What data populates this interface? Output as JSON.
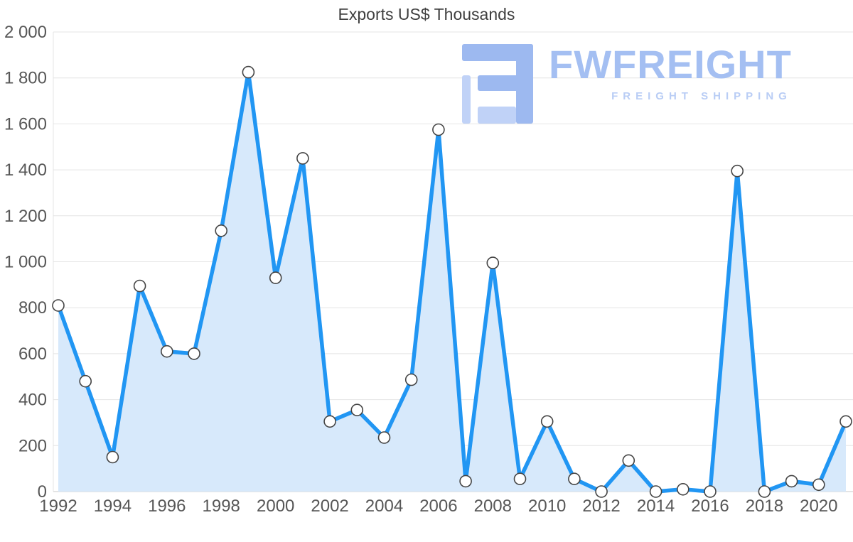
{
  "title": "Exports US$ Thousands",
  "watermark": {
    "brand": "FWFREIGHT",
    "tagline": "FREIGHT SHIPPING",
    "brand_color": "#a4bff2",
    "tagline_color": "#b9cdf5",
    "logo_dark": "#9db9f0",
    "logo_light": "#c0d2f7"
  },
  "chart_data": {
    "type": "area",
    "title": "Exports US$ Thousands",
    "xlabel": "",
    "ylabel": "",
    "x": [
      1992,
      1993,
      1994,
      1995,
      1996,
      1997,
      1998,
      1999,
      2000,
      2001,
      2002,
      2003,
      2004,
      2005,
      2006,
      2007,
      2008,
      2009,
      2010,
      2011,
      2012,
      2013,
      2014,
      2015,
      2016,
      2017,
      2018,
      2019,
      2020,
      2021
    ],
    "series": [
      {
        "name": "Exports",
        "values": [
          810,
          480,
          150,
          895,
          610,
          600,
          1135,
          1825,
          930,
          1450,
          305,
          355,
          235,
          487,
          1575,
          45,
          995,
          55,
          305,
          55,
          0,
          135,
          0,
          10,
          0,
          1395,
          0,
          45,
          30,
          305
        ]
      }
    ],
    "ylim": [
      0,
      2000
    ],
    "ytick_step": 200,
    "xtick_every": 2,
    "grid": true,
    "legend": "none",
    "line_color": "#2196f3",
    "fill_color": "#d7e9fb",
    "marker_fill": "#ffffff",
    "marker_stroke": "#444444",
    "grid_color": "#e4e4e4",
    "axis_color": "#c9c9c9",
    "tick_label_color": "#575757"
  }
}
